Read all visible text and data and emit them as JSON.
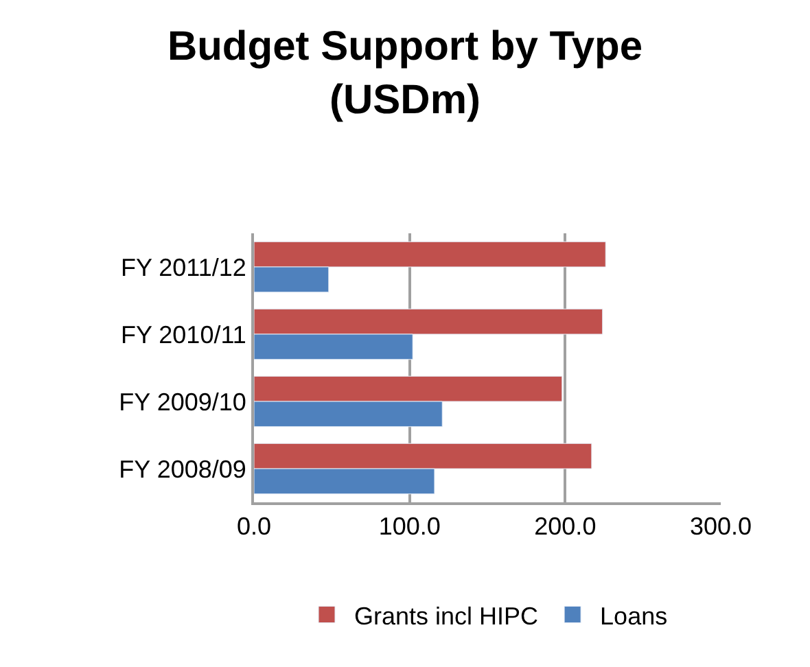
{
  "chart_data": {
    "type": "bar",
    "orientation": "horizontal",
    "title": "Budget Support by Type\n(USDm)",
    "categories": [
      "FY 2011/12",
      "FY 2010/11",
      "FY 2009/10",
      "FY 2008/09"
    ],
    "series": [
      {
        "name": "Grants incl HIPC",
        "color": "#c0504d",
        "values": [
          226,
          224,
          198,
          217
        ]
      },
      {
        "name": "Loans",
        "color": "#4f81bd",
        "values": [
          48,
          102,
          121,
          116
        ]
      }
    ],
    "xlim": [
      0,
      300
    ],
    "xticks": [
      {
        "value": 0,
        "label": "0.0"
      },
      {
        "value": 100,
        "label": "100.0"
      },
      {
        "value": 200,
        "label": "200.0"
      },
      {
        "value": 300,
        "label": "300.0"
      }
    ],
    "grid": "x",
    "legend": "bottom"
  }
}
